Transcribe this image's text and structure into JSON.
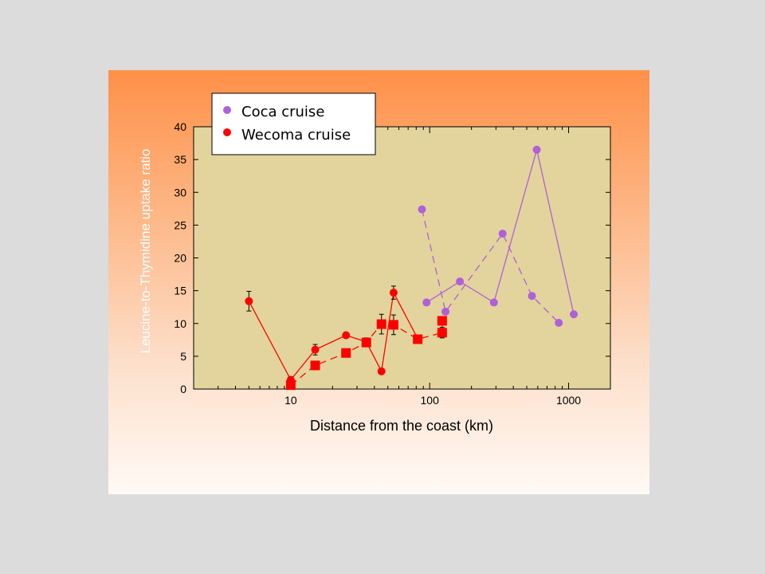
{
  "colors": {
    "background": "#dcdcdc",
    "plot_area": "#e2d49c",
    "coca": "#b060d8",
    "wecoma": "#ff0000"
  },
  "chart_data": {
    "type": "scatter",
    "xscale": "log",
    "xlabel": "Distance from the coast (km)",
    "ylabel": "Leucine-to-Thymidine uptake ratio",
    "xlim": [
      2,
      2000
    ],
    "ylim": [
      0,
      40
    ],
    "xticks": [
      10,
      100,
      1000
    ],
    "yticks": [
      0,
      5,
      10,
      15,
      20,
      25,
      30,
      35,
      40
    ],
    "grid": false,
    "legend_position": "top-left",
    "legend": [
      {
        "label": "Coca cruise",
        "color": "#b060d8"
      },
      {
        "label": "Wecoma cruise",
        "color": "#ff0000"
      }
    ],
    "series": [
      {
        "name": "Coca cruise",
        "color": "#b060d8",
        "marker": "circle",
        "line": "solid",
        "points": [
          [
            95,
            13.2
          ],
          [
            165,
            16.4
          ],
          [
            290,
            13.2
          ],
          [
            590,
            36.5
          ],
          [
            1090,
            11.4
          ]
        ]
      },
      {
        "name": "Coca cruise",
        "color": "#b060d8",
        "marker": "circle",
        "line": "dashed",
        "points": [
          [
            88,
            27.4
          ],
          [
            130,
            11.8
          ],
          [
            335,
            23.7
          ],
          [
            545,
            14.2
          ],
          [
            850,
            10.1
          ]
        ]
      },
      {
        "name": "Wecoma cruise",
        "color": "#ff0000",
        "marker": "circle",
        "line": "solid",
        "points": [
          [
            5,
            13.4
          ],
          [
            10,
            1.4
          ],
          [
            15,
            6.0
          ],
          [
            25,
            8.2
          ],
          [
            35,
            7.2
          ],
          [
            45,
            2.7
          ],
          [
            55,
            14.7
          ],
          [
            82,
            7.7
          ]
        ],
        "errors": [
          1.5,
          0.5,
          0.8,
          0.4,
          0.6,
          0.4,
          1.0,
          0.3
        ]
      },
      {
        "name": "Wecoma cruise",
        "color": "#ff0000",
        "marker": "square",
        "line": "dashed",
        "points": [
          [
            10,
            0.6
          ],
          [
            15,
            3.6
          ],
          [
            25,
            5.5
          ],
          [
            35,
            7.1
          ],
          [
            45,
            9.9
          ],
          [
            55,
            9.8
          ],
          [
            82,
            7.6
          ],
          [
            123,
            8.6
          ],
          [
            123,
            10.4
          ]
        ],
        "errors": [
          0,
          0,
          0,
          0,
          1.5,
          1.5,
          0,
          0.8,
          0
        ]
      }
    ]
  }
}
